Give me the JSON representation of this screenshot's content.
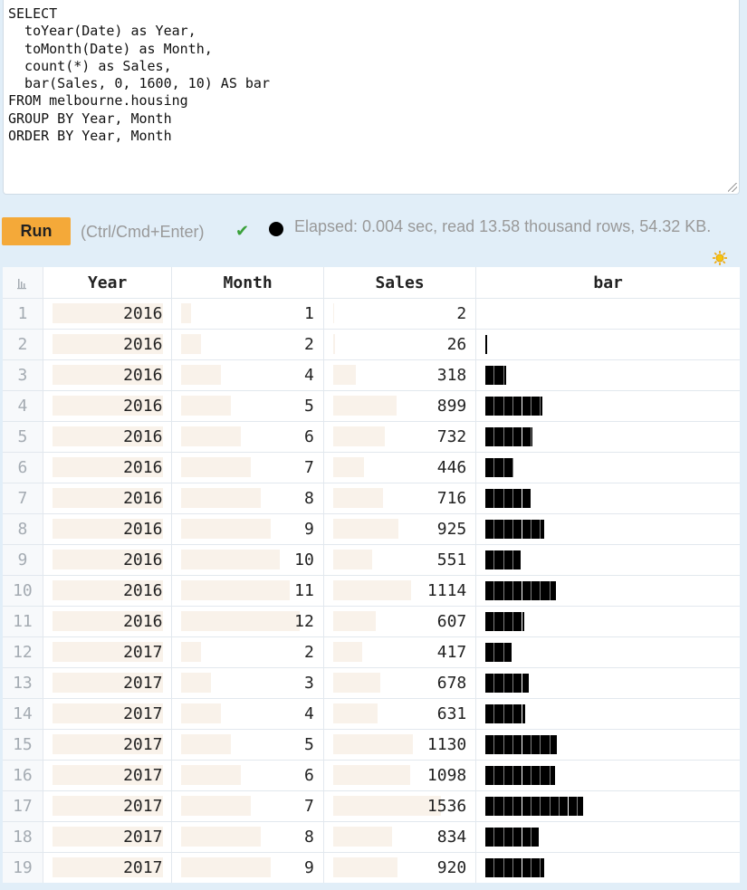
{
  "query": {
    "text": "SELECT\n  toYear(Date) as Year,\n  toMonth(Date) as Month,\n  count(*) as Sales,\n  bar(Sales, 0, 1600, 10) AS bar\nFROM melbourne.housing\nGROUP BY Year, Month\nORDER BY Year, Month"
  },
  "controls": {
    "run_label": "Run",
    "hint": "(Ctrl/Cmd+Enter)",
    "check_icon": "✔",
    "stats": "Elapsed: 0.004 sec, read 13.58 thousand rows, 54.32 KB."
  },
  "icons": {
    "sort": "sort-icon",
    "theme": "sun-icon",
    "status": "status-dot-icon",
    "success": "check-icon"
  },
  "table": {
    "headers": [
      "Year",
      "Month",
      "Sales",
      "bar"
    ],
    "bar_scale": {
      "min": 0,
      "max": 1600,
      "width": 10
    },
    "rows": [
      {
        "idx": "1",
        "year": "2016",
        "month": "1",
        "sales": "2"
      },
      {
        "idx": "2",
        "year": "2016",
        "month": "2",
        "sales": "26"
      },
      {
        "idx": "3",
        "year": "2016",
        "month": "4",
        "sales": "318"
      },
      {
        "idx": "4",
        "year": "2016",
        "month": "5",
        "sales": "899"
      },
      {
        "idx": "5",
        "year": "2016",
        "month": "6",
        "sales": "732"
      },
      {
        "idx": "6",
        "year": "2016",
        "month": "7",
        "sales": "446"
      },
      {
        "idx": "7",
        "year": "2016",
        "month": "8",
        "sales": "716"
      },
      {
        "idx": "8",
        "year": "2016",
        "month": "9",
        "sales": "925"
      },
      {
        "idx": "9",
        "year": "2016",
        "month": "10",
        "sales": "551"
      },
      {
        "idx": "10",
        "year": "2016",
        "month": "11",
        "sales": "1114"
      },
      {
        "idx": "11",
        "year": "2016",
        "month": "12",
        "sales": "607"
      },
      {
        "idx": "12",
        "year": "2017",
        "month": "2",
        "sales": "417"
      },
      {
        "idx": "13",
        "year": "2017",
        "month": "3",
        "sales": "678"
      },
      {
        "idx": "14",
        "year": "2017",
        "month": "4",
        "sales": "631"
      },
      {
        "idx": "15",
        "year": "2017",
        "month": "5",
        "sales": "1130"
      },
      {
        "idx": "16",
        "year": "2017",
        "month": "6",
        "sales": "1098"
      },
      {
        "idx": "17",
        "year": "2017",
        "month": "7",
        "sales": "1536"
      },
      {
        "idx": "18",
        "year": "2017",
        "month": "8",
        "sales": "834"
      },
      {
        "idx": "19",
        "year": "2017",
        "month": "9",
        "sales": "920"
      }
    ]
  }
}
